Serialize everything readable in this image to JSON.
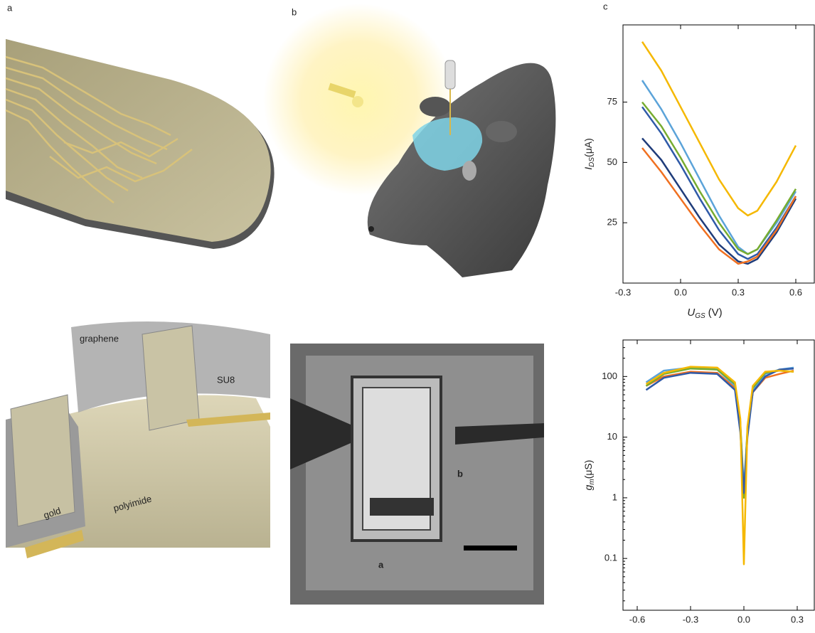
{
  "panel_labels": [
    "a",
    "b",
    "c"
  ],
  "device_labels": {
    "graphene": "graphene",
    "su8": "SU8",
    "gold": "gold",
    "polyimide": "polyimide"
  },
  "micrograph_labels": [
    "a",
    "b"
  ],
  "chart_data": [
    {
      "type": "line",
      "xlabel": {
        "main": "U",
        "sub": "GS",
        "unit": "(V)"
      },
      "ylabel": {
        "main": "I",
        "sub": "DS",
        "unit": "(μA)"
      },
      "x": [
        -0.2,
        -0.1,
        0,
        0.1,
        0.2,
        0.3,
        0.35,
        0.4,
        0.5,
        0.6
      ],
      "xlim": [
        -0.3,
        0.7
      ],
      "ylim": [
        0,
        107
      ],
      "xticks": [
        -0.3,
        {
          "value": 0,
          "label": "0.0"
        },
        0.3,
        0.6
      ],
      "yticks": [
        25,
        50,
        75
      ],
      "log_y": false,
      "series": [
        {
          "color": "#f5b800",
          "values": [
            100,
            88,
            73,
            58,
            43,
            31,
            28,
            30,
            42,
            57
          ]
        },
        {
          "color": "#5ba3d9",
          "values": [
            84,
            72,
            58,
            43,
            28,
            15,
            12,
            14,
            25,
            38
          ]
        },
        {
          "color": "#77ac30",
          "values": [
            75,
            65,
            52,
            38,
            25,
            14,
            12,
            14,
            26,
            39
          ]
        },
        {
          "color": "#2f5aa8",
          "values": [
            73,
            62,
            49,
            35,
            22,
            12,
            10,
            12,
            23,
            36
          ]
        },
        {
          "color": "#1f3c7a",
          "values": [
            60,
            51,
            39,
            27,
            16,
            9,
            8,
            10,
            21,
            35
          ]
        },
        {
          "color": "#f07020",
          "values": [
            56,
            46,
            35,
            24,
            14,
            8,
            9,
            11,
            22,
            36
          ]
        }
      ]
    },
    {
      "type": "line",
      "xlabel": {
        "main": "U",
        "sub": "GS",
        "unit": "(V)"
      },
      "ylabel": {
        "main": "g",
        "sub": "m",
        "unit": "(μS)"
      },
      "x": [
        -0.55,
        -0.45,
        -0.3,
        -0.15,
        -0.05,
        -0.02,
        0,
        0.02,
        0.05,
        0.12,
        0.2,
        0.28
      ],
      "xlim": [
        -0.68,
        0.4
      ],
      "ylim": [
        0.014,
        400
      ],
      "xticks": [
        -0.6,
        -0.3,
        {
          "value": 0,
          "label": "0.0"
        },
        0.3
      ],
      "yticks": [
        0.1,
        1,
        10,
        100
      ],
      "log_y": true,
      "series": [
        {
          "color": "#f07020",
          "values": [
            70,
            100,
            120,
            115,
            65,
            15,
            1.1,
            12,
            55,
            95,
            110,
            125
          ]
        },
        {
          "color": "#5ba3d9",
          "values": [
            80,
            125,
            140,
            130,
            70,
            15,
            1.5,
            12,
            60,
            110,
            130,
            140
          ]
        },
        {
          "color": "#77ac30",
          "values": [
            70,
            110,
            135,
            130,
            75,
            18,
            1,
            14,
            65,
            115,
            125,
            120
          ]
        },
        {
          "color": "#2f5aa8",
          "values": [
            60,
            95,
            115,
            110,
            60,
            12,
            1.2,
            10,
            55,
            100,
            130,
            135
          ]
        },
        {
          "color": "#f5b800",
          "values": [
            75,
            115,
            145,
            140,
            80,
            20,
            0.08,
            15,
            70,
            120,
            125,
            120
          ]
        }
      ]
    }
  ]
}
